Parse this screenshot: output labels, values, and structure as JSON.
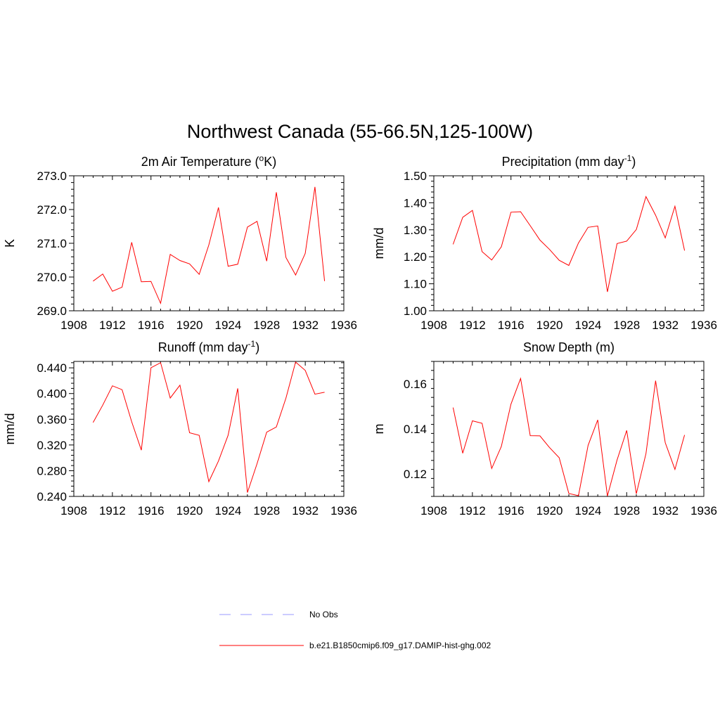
{
  "figure": {
    "title": "Northwest Canada (55-66.5N,125-100W)"
  },
  "legend": {
    "entries": [
      {
        "label": "No Obs",
        "color": "#9999ff",
        "style": "dashed"
      },
      {
        "label": "b.e21.B1850cmip6.f09_g17.DAMIP-hist-ghg.002",
        "color": "#ff0000",
        "style": "solid"
      }
    ]
  },
  "chart_data": [
    {
      "type": "line",
      "title": "2m Air Temperature (",
      "title_sup": "o",
      "title_post": "K)",
      "xlabel": "",
      "ylabel": "K",
      "xlim": [
        1908,
        1936
      ],
      "ylim": [
        269.0,
        273.0
      ],
      "xticks": [
        "1908",
        "1912",
        "1916",
        "1920",
        "1924",
        "1928",
        "1932",
        "1936"
      ],
      "yticks": [
        "269.0",
        "270.0",
        "271.0",
        "272.0",
        "273.0"
      ],
      "ytick_values": [
        269.0,
        270.0,
        271.0,
        272.0,
        273.0
      ],
      "grid": false,
      "x": [
        1910,
        1911,
        1912,
        1913,
        1914,
        1915,
        1916,
        1917,
        1918,
        1919,
        1920,
        1921,
        1922,
        1923,
        1924,
        1925,
        1926,
        1927,
        1928,
        1929,
        1930,
        1931,
        1932,
        1933,
        1934
      ],
      "series": [
        {
          "color": "#ff0000",
          "values": [
            269.88,
            270.09,
            269.58,
            269.7,
            271.03,
            269.86,
            269.87,
            269.22,
            270.67,
            270.49,
            270.39,
            270.08,
            270.95,
            272.06,
            270.32,
            270.38,
            271.48,
            271.65,
            270.47,
            272.51,
            270.58,
            270.06,
            270.7,
            272.67,
            269.88
          ]
        }
      ]
    },
    {
      "type": "line",
      "title": "Precipitation (mm day",
      "title_sup": "-1",
      "title_post": ")",
      "xlabel": "",
      "ylabel": "mm/d",
      "xlim": [
        1908,
        1936
      ],
      "ylim": [
        1.0,
        1.5
      ],
      "xticks": [
        "1908",
        "1912",
        "1916",
        "1920",
        "1924",
        "1928",
        "1932",
        "1936"
      ],
      "yticks": [
        "1.00",
        "1.10",
        "1.20",
        "1.30",
        "1.40",
        "1.50"
      ],
      "ytick_values": [
        1.0,
        1.1,
        1.2,
        1.3,
        1.4,
        1.5
      ],
      "grid": false,
      "x": [
        1910,
        1911,
        1912,
        1913,
        1914,
        1915,
        1916,
        1917,
        1918,
        1919,
        1920,
        1921,
        1922,
        1923,
        1924,
        1925,
        1926,
        1927,
        1928,
        1929,
        1930,
        1931,
        1932,
        1933,
        1934
      ],
      "series": [
        {
          "color": "#ff0000",
          "values": [
            1.246,
            1.346,
            1.372,
            1.219,
            1.188,
            1.237,
            1.365,
            1.367,
            1.315,
            1.262,
            1.227,
            1.187,
            1.168,
            1.251,
            1.309,
            1.314,
            1.07,
            1.249,
            1.258,
            1.301,
            1.423,
            1.354,
            1.27,
            1.387,
            1.223
          ]
        }
      ]
    },
    {
      "type": "line",
      "title": "Runoff (mm day",
      "title_sup": "-1",
      "title_post": ")",
      "xlabel": "",
      "ylabel": "mm/d",
      "xlim": [
        1908,
        1936
      ],
      "ylim": [
        0.24,
        0.45
      ],
      "xticks": [
        "1908",
        "1912",
        "1916",
        "1920",
        "1924",
        "1928",
        "1932",
        "1936"
      ],
      "yticks": [
        "0.240",
        "0.280",
        "0.320",
        "0.360",
        "0.400",
        "0.440"
      ],
      "ytick_values": [
        0.24,
        0.28,
        0.32,
        0.36,
        0.4,
        0.44
      ],
      "grid": false,
      "x": [
        1910,
        1911,
        1912,
        1913,
        1914,
        1915,
        1916,
        1917,
        1918,
        1919,
        1920,
        1921,
        1922,
        1923,
        1924,
        1925,
        1926,
        1927,
        1928,
        1929,
        1930,
        1931,
        1932,
        1933,
        1934
      ],
      "series": [
        {
          "color": "#ff0000",
          "values": [
            0.355,
            0.382,
            0.412,
            0.406,
            0.356,
            0.312,
            0.44,
            0.448,
            0.393,
            0.413,
            0.339,
            0.335,
            0.263,
            0.295,
            0.335,
            0.408,
            0.246,
            0.291,
            0.34,
            0.348,
            0.393,
            0.449,
            0.436,
            0.399,
            0.402
          ]
        }
      ]
    },
    {
      "type": "line",
      "title": "Snow Depth (m)",
      "title_sup": "",
      "title_post": "",
      "xlabel": "",
      "ylabel": "m",
      "xlim": [
        1908,
        1936
      ],
      "ylim": [
        0.11,
        0.17
      ],
      "xticks": [
        "1908",
        "1912",
        "1916",
        "1920",
        "1924",
        "1928",
        "1932",
        "1936"
      ],
      "yticks": [
        "0.12",
        "0.14",
        "0.16"
      ],
      "ytick_values": [
        0.12,
        0.14,
        0.16
      ],
      "grid": false,
      "x": [
        1910,
        1911,
        1912,
        1913,
        1914,
        1915,
        1916,
        1917,
        1918,
        1919,
        1920,
        1921,
        1922,
        1923,
        1924,
        1925,
        1926,
        1927,
        1928,
        1929,
        1930,
        1931,
        1932,
        1933,
        1934
      ],
      "series": [
        {
          "color": "#ff0000",
          "values": [
            0.1495,
            0.1292,
            0.1436,
            0.1425,
            0.1224,
            0.1322,
            0.151,
            0.1624,
            0.137,
            0.1369,
            0.1317,
            0.1272,
            0.1113,
            0.1103,
            0.1327,
            0.144,
            0.1102,
            0.1262,
            0.1393,
            0.1112,
            0.129,
            0.1614,
            0.1339,
            0.122,
            0.1373
          ]
        }
      ]
    }
  ]
}
